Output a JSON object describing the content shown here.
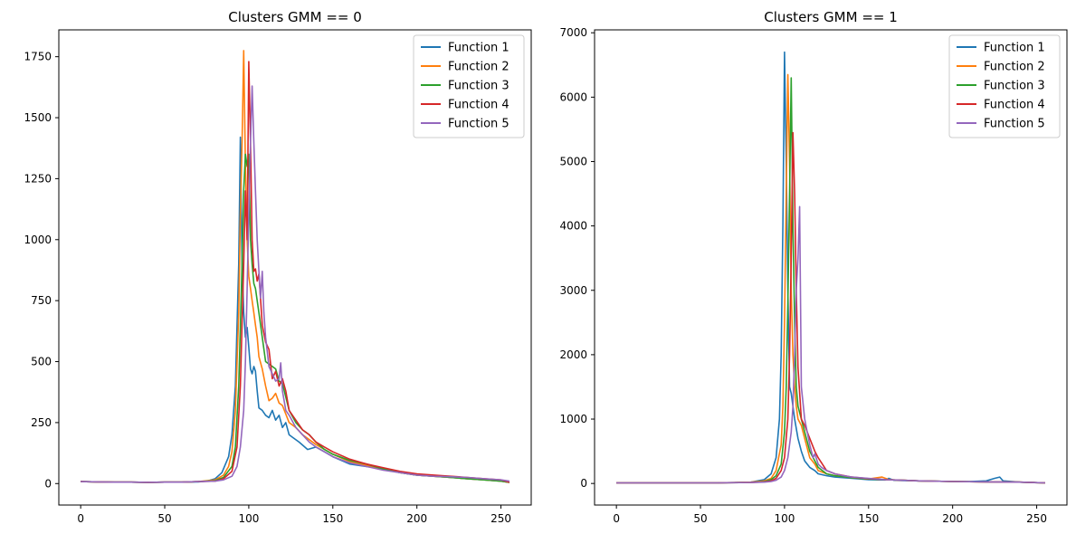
{
  "chart_data": [
    {
      "type": "line",
      "title": "Clusters GMM == 0",
      "xlabel": "",
      "ylabel": "",
      "xlim": [
        -13,
        268
      ],
      "ylim": [
        -88,
        1860
      ],
      "xticks": [
        0,
        50,
        100,
        150,
        200,
        250
      ],
      "yticks": [
        0,
        250,
        500,
        750,
        1000,
        1250,
        1500,
        1750
      ],
      "legend_position": "top-right",
      "grid": false,
      "series": [
        {
          "name": "Function 1",
          "color": "#1f77b4",
          "x": [
            0,
            10,
            20,
            30,
            40,
            50,
            60,
            70,
            75,
            80,
            84,
            88,
            90,
            92,
            94,
            95,
            96,
            97,
            98,
            99,
            100,
            101,
            102,
            103,
            104,
            105,
            106,
            108,
            110,
            112,
            114,
            116,
            118,
            120,
            122,
            124,
            126,
            130,
            135,
            140,
            145,
            150,
            160,
            170,
            180,
            190,
            200,
            210,
            220,
            230,
            240,
            250,
            255
          ],
          "y": [
            8,
            7,
            6,
            6,
            5,
            6,
            6,
            7,
            10,
            20,
            45,
            110,
            200,
            400,
            900,
            1420,
            900,
            700,
            600,
            640,
            560,
            470,
            450,
            480,
            460,
            380,
            310,
            300,
            280,
            270,
            300,
            260,
            280,
            230,
            250,
            200,
            190,
            170,
            140,
            150,
            130,
            110,
            80,
            70,
            60,
            45,
            35,
            30,
            25,
            20,
            15,
            10,
            5
          ]
        },
        {
          "name": "Function 2",
          "color": "#ff7f0e",
          "x": [
            0,
            10,
            20,
            30,
            40,
            50,
            60,
            70,
            80,
            85,
            88,
            90,
            92,
            94,
            95,
            96,
            97,
            98,
            99,
            100,
            101,
            102,
            103,
            104,
            105,
            106,
            108,
            110,
            112,
            114,
            116,
            118,
            120,
            124,
            128,
            132,
            136,
            140,
            145,
            150,
            160,
            170,
            180,
            190,
            200,
            210,
            220,
            230,
            240,
            250,
            255
          ],
          "y": [
            8,
            7,
            6,
            6,
            5,
            6,
            6,
            8,
            15,
            35,
            70,
            130,
            300,
            700,
            1100,
            1400,
            1775,
            1300,
            1000,
            850,
            800,
            750,
            700,
            650,
            600,
            520,
            470,
            400,
            340,
            350,
            370,
            330,
            320,
            250,
            230,
            200,
            180,
            160,
            140,
            120,
            90,
            75,
            60,
            45,
            35,
            30,
            25,
            20,
            15,
            10,
            5
          ]
        },
        {
          "name": "Function 3",
          "color": "#2ca02c",
          "x": [
            0,
            10,
            20,
            30,
            40,
            50,
            60,
            70,
            80,
            85,
            90,
            92,
            94,
            96,
            97,
            98,
            99,
            100,
            101,
            102,
            103,
            104,
            105,
            106,
            108,
            110,
            112,
            114,
            116,
            118,
            120,
            124,
            128,
            132,
            136,
            140,
            145,
            150,
            160,
            170,
            180,
            190,
            200,
            210,
            220,
            230,
            240,
            250,
            255
          ],
          "y": [
            8,
            7,
            6,
            6,
            5,
            6,
            6,
            8,
            12,
            25,
            70,
            150,
            400,
            900,
            1200,
            1350,
            1300,
            1350,
            1000,
            900,
            820,
            800,
            750,
            700,
            600,
            500,
            490,
            480,
            470,
            420,
            410,
            300,
            250,
            220,
            200,
            170,
            140,
            120,
            95,
            80,
            60,
            45,
            35,
            30,
            25,
            20,
            15,
            10,
            5
          ]
        },
        {
          "name": "Function 4",
          "color": "#d62728",
          "x": [
            0,
            10,
            20,
            30,
            40,
            50,
            60,
            70,
            80,
            85,
            90,
            93,
            95,
            97,
            98,
            99,
            100,
            101,
            102,
            103,
            104,
            105,
            106,
            108,
            110,
            112,
            114,
            116,
            118,
            120,
            122,
            124,
            128,
            132,
            136,
            140,
            145,
            150,
            160,
            170,
            180,
            190,
            200,
            210,
            220,
            230,
            240,
            250,
            255
          ],
          "y": [
            8,
            7,
            6,
            6,
            5,
            6,
            6,
            8,
            10,
            20,
            50,
            150,
            400,
            900,
            1200,
            1000,
            1730,
            1400,
            1000,
            870,
            880,
            830,
            860,
            650,
            580,
            550,
            430,
            460,
            400,
            430,
            380,
            300,
            260,
            220,
            200,
            170,
            150,
            130,
            100,
            80,
            65,
            50,
            40,
            35,
            30,
            25,
            20,
            15,
            5
          ]
        },
        {
          "name": "Function 5",
          "color": "#9467bd",
          "x": [
            0,
            10,
            20,
            30,
            40,
            50,
            60,
            70,
            80,
            85,
            90,
            93,
            95,
            97,
            98,
            99,
            100,
            101,
            102,
            103,
            104,
            105,
            106,
            107,
            108,
            109,
            110,
            112,
            114,
            116,
            118,
            119,
            120,
            122,
            124,
            128,
            132,
            136,
            140,
            145,
            150,
            160,
            170,
            180,
            190,
            200,
            210,
            220,
            230,
            240,
            250,
            255
          ],
          "y": [
            8,
            7,
            6,
            6,
            5,
            6,
            6,
            8,
            10,
            15,
            30,
            70,
            150,
            300,
            500,
            800,
            1100,
            1400,
            1630,
            1400,
            1200,
            1000,
            870,
            760,
            870,
            700,
            600,
            480,
            450,
            420,
            430,
            495,
            380,
            300,
            280,
            230,
            200,
            170,
            150,
            130,
            110,
            85,
            70,
            55,
            45,
            35,
            30,
            28,
            25,
            20,
            15,
            10
          ]
        }
      ]
    },
    {
      "type": "line",
      "title": "Clusters GMM == 1",
      "xlabel": "",
      "ylabel": "",
      "xlim": [
        -13,
        268
      ],
      "ylim": [
        -335,
        7045
      ],
      "xticks": [
        0,
        50,
        100,
        150,
        200,
        250
      ],
      "yticks": [
        0,
        1000,
        2000,
        3000,
        4000,
        5000,
        6000,
        7000
      ],
      "legend_position": "top-right",
      "grid": false,
      "series": [
        {
          "name": "Function 1",
          "color": "#1f77b4",
          "x": [
            0,
            20,
            40,
            60,
            80,
            88,
            92,
            95,
            97,
            98,
            99,
            100,
            101,
            102,
            103,
            104,
            105,
            106,
            108,
            110,
            112,
            115,
            118,
            120,
            125,
            130,
            140,
            150,
            160,
            162,
            165,
            170,
            180,
            200,
            210,
            220,
            225,
            228,
            230,
            240,
            255
          ],
          "y": [
            10,
            10,
            10,
            10,
            20,
            60,
            150,
            400,
            1000,
            2000,
            4000,
            6700,
            5000,
            3000,
            1500,
            1400,
            1200,
            1000,
            700,
            500,
            350,
            250,
            200,
            150,
            120,
            100,
            80,
            60,
            55,
            80,
            50,
            45,
            40,
            30,
            30,
            40,
            80,
            100,
            40,
            20,
            10
          ]
        },
        {
          "name": "Function 2",
          "color": "#ff7f0e",
          "x": [
            0,
            20,
            40,
            60,
            80,
            88,
            92,
            95,
            98,
            99,
            100,
            101,
            102,
            103,
            104,
            105,
            106,
            107,
            108,
            110,
            112,
            115,
            118,
            120,
            125,
            130,
            140,
            150,
            158,
            162,
            170,
            180,
            200,
            220,
            240,
            255
          ],
          "y": [
            10,
            10,
            10,
            10,
            20,
            40,
            80,
            200,
            600,
            1200,
            2500,
            4500,
            6350,
            5000,
            3000,
            2000,
            1500,
            1200,
            1000,
            900,
            700,
            400,
            300,
            200,
            150,
            120,
            90,
            70,
            100,
            60,
            50,
            40,
            30,
            25,
            20,
            10
          ]
        },
        {
          "name": "Function 3",
          "color": "#2ca02c",
          "x": [
            0,
            20,
            40,
            60,
            80,
            88,
            92,
            95,
            98,
            100,
            101,
            102,
            103,
            104,
            105,
            106,
            107,
            108,
            110,
            112,
            115,
            118,
            120,
            125,
            130,
            140,
            150,
            160,
            170,
            180,
            200,
            220,
            240,
            255
          ],
          "y": [
            10,
            10,
            10,
            10,
            15,
            30,
            60,
            120,
            300,
            800,
            1500,
            2800,
            4500,
            6300,
            4000,
            2500,
            1500,
            1200,
            1000,
            800,
            500,
            350,
            250,
            150,
            120,
            90,
            70,
            60,
            50,
            40,
            30,
            25,
            20,
            10
          ]
        },
        {
          "name": "Function 4",
          "color": "#d62728",
          "x": [
            0,
            20,
            40,
            60,
            80,
            88,
            92,
            95,
            98,
            100,
            102,
            103,
            104,
            105,
            106,
            107,
            108,
            110,
            112,
            115,
            118,
            120,
            125,
            130,
            140,
            150,
            160,
            170,
            180,
            200,
            220,
            240,
            255
          ],
          "y": [
            10,
            10,
            10,
            10,
            15,
            25,
            40,
            80,
            200,
            400,
            1000,
            2000,
            3500,
            5450,
            4500,
            3000,
            1800,
            1000,
            900,
            700,
            500,
            400,
            200,
            150,
            100,
            75,
            60,
            50,
            40,
            30,
            25,
            20,
            10
          ]
        },
        {
          "name": "Function 5",
          "color": "#9467bd",
          "x": [
            0,
            20,
            40,
            60,
            80,
            88,
            92,
            95,
            98,
            100,
            102,
            104,
            105,
            106,
            107,
            108,
            109,
            110,
            112,
            115,
            117,
            118,
            120,
            122,
            125,
            130,
            135,
            140,
            150,
            160,
            170,
            180,
            200,
            220,
            240,
            255
          ],
          "y": [
            10,
            10,
            10,
            10,
            15,
            20,
            30,
            50,
            100,
            200,
            400,
            800,
            1200,
            2000,
            3000,
            3500,
            4300,
            1500,
            1000,
            600,
            400,
            460,
            300,
            250,
            200,
            150,
            120,
            100,
            80,
            60,
            50,
            40,
            30,
            25,
            20,
            10
          ]
        }
      ]
    }
  ]
}
